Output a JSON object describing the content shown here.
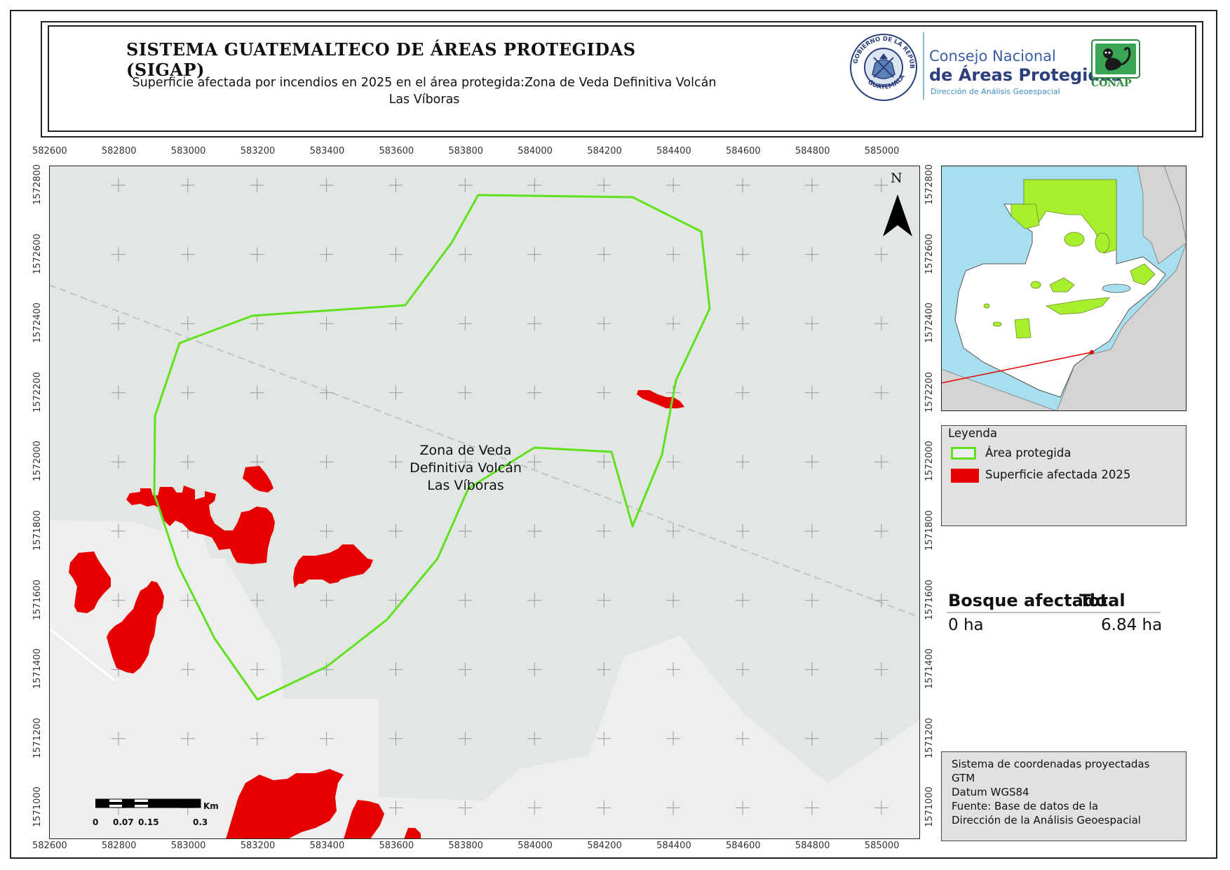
{
  "header": {
    "title": "SISTEMA GUATEMALTECO DE ÁREAS PROTEGIDAS  (SIGAP)",
    "subtitle": "Superficie afectada por incendios en 2025 en el área protegida:Zona de Veda Definitiva Volcán Las Víboras",
    "seal_text_top": "GOBIERNO DE LA REPÚBLICA",
    "seal_text_bottom": "GUATEMALA",
    "org_line1": "Consejo Nacional",
    "org_line2": "de Áreas Protegidas",
    "org_line3": "Dirección de Análisis Geoespacial",
    "org_acronym": "CONAP"
  },
  "map": {
    "x_ticks": [
      "582600",
      "582800",
      "583000",
      "583200",
      "583400",
      "583600",
      "583800",
      "584000",
      "584200",
      "584400",
      "584600",
      "584800",
      "585000"
    ],
    "y_ticks": [
      "1572800",
      "1572600",
      "1572400",
      "1572200",
      "1572000",
      "1571800",
      "1571600",
      "1571400",
      "1571200",
      "1571000"
    ],
    "area_label": [
      "Zona de Veda",
      "Definitiva Volcán",
      "Las Víboras"
    ],
    "north_label": "N",
    "scale_unit": "Km",
    "scale_labels": [
      "0",
      "0.07",
      "0.15",
      "0.3"
    ],
    "colors": {
      "protected_area": "#5fe11e",
      "burned": "#e60000",
      "background": "#e3e7e3",
      "water": "#a8dff0"
    }
  },
  "legend": {
    "title": "Leyenda",
    "items": [
      {
        "label": "Área protegida",
        "color": "#5fe11e",
        "type": "outline"
      },
      {
        "label": "Superficie afectada 2025",
        "color": "#e60000",
        "type": "fill"
      }
    ]
  },
  "summary": {
    "col1_header": "Bosque afectado",
    "col2_header": "Total",
    "col1_value": "0 ha",
    "col2_value": "6.84 ha"
  },
  "info": {
    "lines": [
      "Sistema de coordenadas proyectadas",
      "GTM",
      "Datum WGS84",
      "Fuente: Base de datos de la",
      "Dirección de la Análisis Geoespacial"
    ]
  }
}
